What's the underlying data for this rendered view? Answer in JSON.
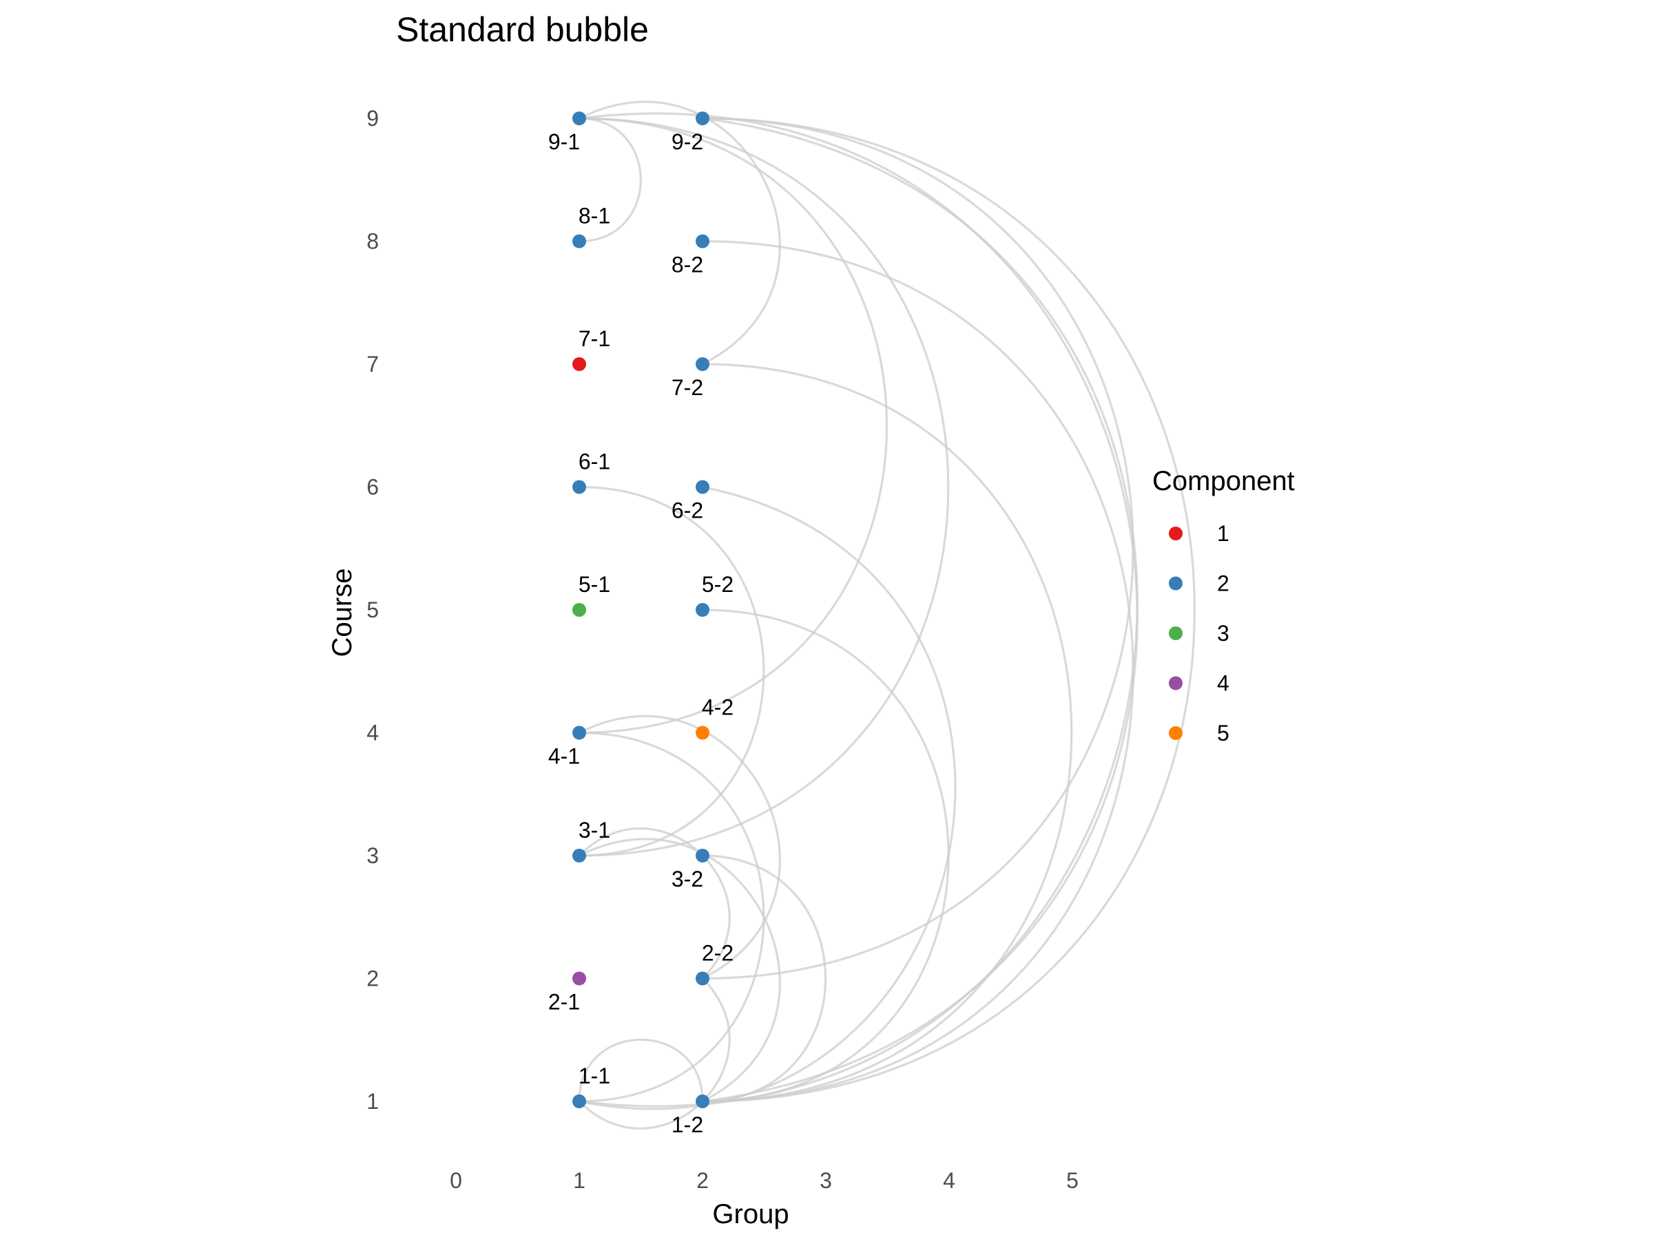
{
  "chart_data": {
    "type": "scatter",
    "title": "Standard bubble",
    "xlabel": "Group",
    "ylabel": "Course",
    "xlim": [
      0,
      5
    ],
    "ylim": [
      1,
      9
    ],
    "x_ticks": [
      0,
      1,
      2,
      3,
      4,
      5
    ],
    "y_ticks": [
      1,
      2,
      3,
      4,
      5,
      6,
      7,
      8,
      9
    ],
    "grid": false,
    "legend": {
      "title": "Component",
      "placement": "right",
      "entries": [
        {
          "label": "1",
          "color": "#e41a1c"
        },
        {
          "label": "2",
          "color": "#377eb8"
        },
        {
          "label": "3",
          "color": "#4daf4a"
        },
        {
          "label": "4",
          "color": "#984ea3"
        },
        {
          "label": "5",
          "color": "#ff7f00"
        }
      ]
    },
    "nodes": [
      {
        "id": "1-1",
        "x": 1,
        "y": 1,
        "component": "2",
        "label_pos": "above"
      },
      {
        "id": "2-1",
        "x": 1,
        "y": 2,
        "component": "4",
        "label_pos": "below"
      },
      {
        "id": "3-1",
        "x": 1,
        "y": 3,
        "component": "2",
        "label_pos": "above"
      },
      {
        "id": "4-1",
        "x": 1,
        "y": 4,
        "component": "2",
        "label_pos": "below"
      },
      {
        "id": "5-1",
        "x": 1,
        "y": 5,
        "component": "3",
        "label_pos": "above"
      },
      {
        "id": "6-1",
        "x": 1,
        "y": 6,
        "component": "2",
        "label_pos": "above"
      },
      {
        "id": "7-1",
        "x": 1,
        "y": 7,
        "component": "1",
        "label_pos": "above"
      },
      {
        "id": "8-1",
        "x": 1,
        "y": 8,
        "component": "2",
        "label_pos": "above"
      },
      {
        "id": "9-1",
        "x": 1,
        "y": 9,
        "component": "2",
        "label_pos": "below"
      },
      {
        "id": "1-2",
        "x": 2,
        "y": 1,
        "component": "2",
        "label_pos": "below"
      },
      {
        "id": "2-2",
        "x": 2,
        "y": 2,
        "component": "2",
        "label_pos": "above"
      },
      {
        "id": "3-2",
        "x": 2,
        "y": 3,
        "component": "2",
        "label_pos": "below"
      },
      {
        "id": "4-2",
        "x": 2,
        "y": 4,
        "component": "5",
        "label_pos": "above"
      },
      {
        "id": "5-2",
        "x": 2,
        "y": 5,
        "component": "2",
        "label_pos": "above"
      },
      {
        "id": "6-2",
        "x": 2,
        "y": 6,
        "component": "2",
        "label_pos": "below"
      },
      {
        "id": "7-2",
        "x": 2,
        "y": 7,
        "component": "2",
        "label_pos": "below"
      },
      {
        "id": "8-2",
        "x": 2,
        "y": 8,
        "component": "2",
        "label_pos": "below"
      },
      {
        "id": "9-2",
        "x": 2,
        "y": 9,
        "component": "2",
        "label_pos": "below"
      }
    ],
    "edges": [
      {
        "from": "9-1",
        "to": "8-1"
      },
      {
        "from": "9-1",
        "to": "7-2"
      },
      {
        "from": "9-1",
        "to": "4-1"
      },
      {
        "from": "9-1",
        "to": "3-1"
      },
      {
        "from": "9-1",
        "to": "1-2"
      },
      {
        "from": "9-2",
        "to": "2-2"
      },
      {
        "from": "9-2",
        "to": "1-1"
      },
      {
        "from": "9-2",
        "to": "1-2"
      },
      {
        "from": "8-2",
        "to": "1-2"
      },
      {
        "from": "7-2",
        "to": "1-2"
      },
      {
        "from": "6-2",
        "to": "1-1"
      },
      {
        "from": "5-2",
        "to": "1-2"
      },
      {
        "from": "6-1",
        "to": "3-1"
      },
      {
        "from": "4-1",
        "to": "2-2"
      },
      {
        "from": "4-1",
        "to": "1-1"
      },
      {
        "from": "3-1",
        "to": "2-2"
      },
      {
        "from": "3-1",
        "to": "1-2"
      },
      {
        "from": "3-2",
        "to": "1-2"
      },
      {
        "from": "2-2",
        "to": "1-1"
      },
      {
        "from": "1-1",
        "to": "1-2"
      }
    ]
  }
}
